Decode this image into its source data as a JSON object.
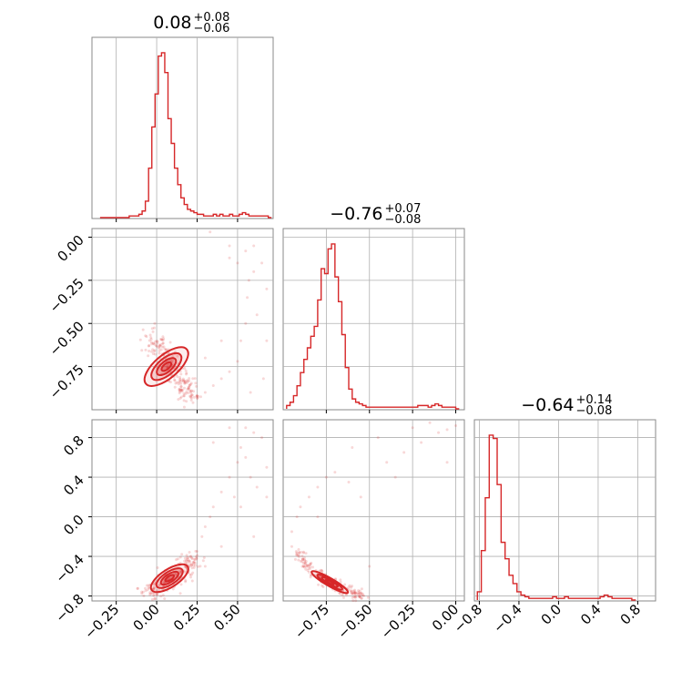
{
  "chart_data": {
    "type": "corner",
    "color": "#d62728",
    "grid": true,
    "parameters": [
      {
        "title_value": "0.08",
        "title_plus": "+0.08",
        "title_minus": "−0.06",
        "range": [
          -0.4,
          0.72
        ]
      },
      {
        "title_value": "−0.76",
        "title_plus": "+0.07",
        "title_minus": "−0.08",
        "range": [
          -1.0,
          0.05
        ]
      },
      {
        "title_value": "−0.64",
        "title_plus": "+0.14",
        "title_minus": "−0.08",
        "range": [
          -0.85,
          0.98
        ]
      }
    ],
    "x_ticks": [
      [
        {
          "v": -0.25,
          "label": "−0.25"
        },
        {
          "v": 0.0,
          "label": "0.00"
        },
        {
          "v": 0.25,
          "label": "0.25"
        },
        {
          "v": 0.5,
          "label": "0.50"
        }
      ],
      [
        {
          "v": -0.75,
          "label": "−0.75"
        },
        {
          "v": -0.5,
          "label": "−0.50"
        },
        {
          "v": -0.25,
          "label": "−0.25"
        },
        {
          "v": 0.0,
          "label": "0.00"
        }
      ],
      [
        {
          "v": -0.8,
          "label": "−0.8"
        },
        {
          "v": -0.4,
          "label": "−0.4"
        },
        {
          "v": 0.0,
          "label": "0.0"
        },
        {
          "v": 0.4,
          "label": "0.4"
        },
        {
          "v": 0.8,
          "label": "0.8"
        }
      ]
    ],
    "y_ticks": {
      "1": [
        {
          "v": 0.0,
          "label": "0.00"
        },
        {
          "v": -0.25,
          "label": "−0.25"
        },
        {
          "v": -0.5,
          "label": "−0.50"
        },
        {
          "v": -0.75,
          "label": "−0.75"
        }
      ],
      "2": [
        {
          "v": 0.8,
          "label": "0.8"
        },
        {
          "v": 0.4,
          "label": "0.4"
        },
        {
          "v": 0.0,
          "label": "0.0"
        },
        {
          "v": -0.4,
          "label": "−0.4"
        },
        {
          "v": -0.8,
          "label": "−0.8"
        }
      ]
    },
    "histograms": [
      {
        "bin_start": -0.35,
        "bin_width": 0.02,
        "counts": [
          0,
          0,
          0,
          0,
          0,
          0,
          0,
          0,
          0,
          1,
          1,
          1,
          2,
          4,
          10,
          30,
          55,
          75,
          98,
          100,
          88,
          60,
          45,
          30,
          20,
          12,
          8,
          5,
          4,
          3,
          2,
          2,
          1,
          1,
          1,
          2,
          1,
          2,
          1,
          1,
          2,
          1,
          1,
          2,
          3,
          2,
          1,
          1,
          1,
          1,
          1,
          1,
          0
        ]
      },
      {
        "bin_start": -0.98,
        "bin_width": 0.02,
        "counts": [
          2,
          4,
          8,
          14,
          22,
          30,
          37,
          44,
          50,
          66,
          85,
          82,
          97,
          100,
          80,
          65,
          45,
          25,
          12,
          6,
          4,
          3,
          2,
          1,
          1,
          1,
          1,
          1,
          1,
          1,
          1,
          1,
          1,
          1,
          1,
          1,
          1,
          1,
          2,
          2,
          2,
          1,
          2,
          3,
          2,
          1,
          1,
          1,
          1,
          0
        ]
      },
      {
        "bin_start": -0.82,
        "bin_width": 0.04,
        "counts": [
          5,
          30,
          62,
          100,
          98,
          70,
          35,
          25,
          15,
          10,
          5,
          3,
          2,
          1,
          1,
          1,
          1,
          1,
          1,
          2,
          1,
          1,
          2,
          1,
          1,
          1,
          1,
          1,
          1,
          1,
          1,
          2,
          3,
          2,
          1,
          1,
          1,
          1,
          1,
          0
        ]
      }
    ],
    "scatter_samples": [
      {
        "row": 1,
        "col": 0,
        "ridge": [
          [
            -0.05,
            -0.57
          ],
          [
            0.05,
            -0.68
          ],
          [
            0.15,
            -0.83
          ],
          [
            0.22,
            -0.93
          ]
        ],
        "sigma": [
          0.035,
          0.035
        ],
        "count": 220,
        "outliers": [
          [
            0.25,
            -0.92
          ],
          [
            0.3,
            -0.9
          ],
          [
            0.35,
            -0.86
          ],
          [
            0.4,
            -0.82
          ],
          [
            0.45,
            -0.78
          ],
          [
            0.5,
            -0.72
          ],
          [
            0.52,
            -0.6
          ],
          [
            0.55,
            -0.5
          ],
          [
            0.56,
            -0.35
          ],
          [
            0.57,
            -0.25
          ],
          [
            0.6,
            -0.2
          ],
          [
            0.65,
            -0.15
          ],
          [
            0.5,
            -0.15
          ],
          [
            0.45,
            -0.12
          ],
          [
            0.6,
            -0.05
          ],
          [
            0.62,
            -0.45
          ],
          [
            0.68,
            -0.6
          ],
          [
            0.66,
            -0.82
          ],
          [
            0.58,
            -0.9
          ],
          [
            0.68,
            -0.3
          ],
          [
            0.4,
            -0.6
          ],
          [
            0.3,
            -0.7
          ],
          [
            0.33,
            0.03
          ],
          [
            0.45,
            -0.05
          ],
          [
            0.55,
            -0.08
          ]
        ]
      },
      {
        "row": 2,
        "col": 0,
        "ridge": [
          [
            -0.05,
            -0.77
          ],
          [
            0.05,
            -0.68
          ],
          [
            0.15,
            -0.55
          ],
          [
            0.22,
            -0.42
          ]
        ],
        "sigma": [
          0.04,
          0.04
        ],
        "count": 220,
        "outliers": [
          [
            0.25,
            -0.35
          ],
          [
            0.28,
            -0.2
          ],
          [
            0.3,
            -0.1
          ],
          [
            0.33,
            0.0
          ],
          [
            0.35,
            0.1
          ],
          [
            0.4,
            0.25
          ],
          [
            0.45,
            0.4
          ],
          [
            0.5,
            0.55
          ],
          [
            0.52,
            0.7
          ],
          [
            0.55,
            0.9
          ],
          [
            0.6,
            0.85
          ],
          [
            0.65,
            0.8
          ],
          [
            0.58,
            0.4
          ],
          [
            0.62,
            0.3
          ],
          [
            0.68,
            0.5
          ],
          [
            0.45,
            0.9
          ],
          [
            0.35,
            0.75
          ],
          [
            0.4,
            -0.3
          ],
          [
            0.52,
            0.1
          ],
          [
            0.6,
            -0.2
          ],
          [
            0.68,
            0.2
          ],
          [
            0.3,
            -0.5
          ],
          [
            0.55,
            0.6
          ],
          [
            0.48,
            0.2
          ]
        ]
      },
      {
        "row": 2,
        "col": 1,
        "ridge": [
          [
            -0.92,
            -0.35
          ],
          [
            -0.85,
            -0.52
          ],
          [
            -0.75,
            -0.65
          ],
          [
            -0.65,
            -0.72
          ],
          [
            -0.55,
            -0.82
          ]
        ],
        "sigma": [
          0.025,
          0.025
        ],
        "count": 200,
        "outliers": [
          [
            -0.95,
            -0.3
          ],
          [
            -0.95,
            -0.15
          ],
          [
            -0.92,
            0.0
          ],
          [
            -0.9,
            0.1
          ],
          [
            -0.85,
            0.2
          ],
          [
            -0.8,
            0.3
          ],
          [
            -0.75,
            0.4
          ],
          [
            -0.7,
            0.45
          ],
          [
            -0.62,
            0.35
          ],
          [
            -0.55,
            0.2
          ],
          [
            -0.4,
            0.55
          ],
          [
            -0.3,
            0.65
          ],
          [
            -0.2,
            0.75
          ],
          [
            -0.1,
            0.85
          ],
          [
            -0.05,
            0.88
          ],
          [
            0.0,
            0.92
          ],
          [
            -0.15,
            0.95
          ],
          [
            -0.25,
            0.9
          ],
          [
            -0.45,
            0.8
          ],
          [
            -0.6,
            0.7
          ],
          [
            -0.35,
            0.4
          ],
          [
            -0.05,
            0.55
          ],
          [
            -0.8,
            0.0
          ],
          [
            -0.5,
            -0.5
          ]
        ]
      }
    ],
    "contours": [
      {
        "row": 1,
        "col": 0,
        "center": [
          0.06,
          -0.75
        ],
        "rx": [
          0.16,
          0.11,
          0.07,
          0.035
        ],
        "ry": [
          0.07,
          0.05,
          0.032,
          0.017
        ],
        "angle": -40
      },
      {
        "row": 2,
        "col": 0,
        "center": [
          0.08,
          -0.62
        ],
        "rx": [
          0.17,
          0.12,
          0.08,
          0.04
        ],
        "ry": [
          0.07,
          0.05,
          0.032,
          0.016
        ],
        "angle": -33
      },
      {
        "row": 2,
        "col": 1,
        "center": [
          -0.73,
          -0.66
        ],
        "rx": [
          0.16,
          0.11,
          0.07,
          0.035
        ],
        "ry": [
          0.03,
          0.022,
          0.015,
          0.008
        ],
        "angle": 30
      }
    ]
  }
}
